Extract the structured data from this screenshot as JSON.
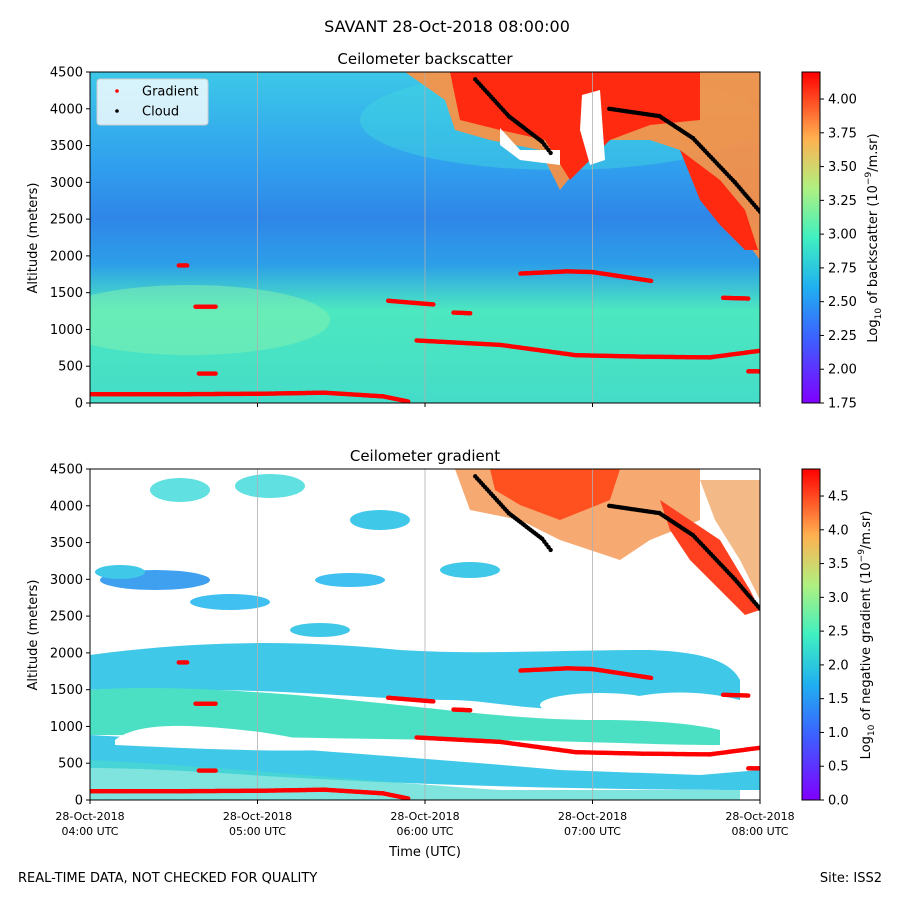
{
  "figure": {
    "suptitle": "SAVANT 28-Oct-2018 08:00:00",
    "footer_left": "REAL-TIME DATA, NOT CHECKED FOR QUALITY",
    "footer_right": "Site: ISS2"
  },
  "chart_data": [
    {
      "type": "heatmap",
      "title": "Ceilometer backscatter",
      "ylabel": "Altitude (meters)",
      "xlabel": "",
      "x_tick_labels": [],
      "y_ticks": [
        0,
        500,
        1000,
        1500,
        2000,
        2500,
        3000,
        3500,
        4000,
        4500
      ],
      "ylim": [
        0,
        4500
      ],
      "xlim_utc": [
        "04:00",
        "08:00"
      ],
      "grid": "vertical lines at x ticks",
      "colorbar": {
        "label_pre": "Log",
        "label_sub": "10",
        "label_mid": " of backscatter (10",
        "label_sup": "−9",
        "label_post": "/m.sr)",
        "range": [
          1.75,
          4.2
        ],
        "ticks": [
          "1.75",
          "2.00",
          "2.25",
          "2.50",
          "2.75",
          "3.00",
          "3.25",
          "3.50",
          "3.75",
          "4.00"
        ],
        "colormap": "rainbow"
      },
      "legend": {
        "placement": "upper-left",
        "entries": [
          {
            "label": "Gradient",
            "color": "#ff0000"
          },
          {
            "label": "Cloud",
            "color": "#000000"
          }
        ]
      }
    },
    {
      "type": "heatmap",
      "title": "Ceilometer gradient",
      "ylabel": "Altitude (meters)",
      "xlabel": "Time (UTC)",
      "x_tick_labels": [
        [
          "28-Oct-2018",
          "04:00 UTC"
        ],
        [
          "28-Oct-2018",
          "05:00 UTC"
        ],
        [
          "28-Oct-2018",
          "06:00 UTC"
        ],
        [
          "28-Oct-2018",
          "07:00 UTC"
        ],
        [
          "28-Oct-2018",
          "08:00 UTC"
        ]
      ],
      "y_ticks": [
        0,
        500,
        1000,
        1500,
        2000,
        2500,
        3000,
        3500,
        4000,
        4500
      ],
      "ylim": [
        0,
        4500
      ],
      "xlim_utc": [
        "04:00",
        "08:00"
      ],
      "grid": "vertical lines at x ticks",
      "colorbar": {
        "label_pre": "Log",
        "label_sub": "10",
        "label_mid": " of negative gradient (10",
        "label_sup": "−9",
        "label_post": "/m.sr)",
        "range": [
          0,
          4.9
        ],
        "ticks": [
          "0.0",
          "0.5",
          "1.0",
          "1.5",
          "2.0",
          "2.5",
          "3.0",
          "3.5",
          "4.0",
          "4.5"
        ],
        "colormap": "rainbow"
      }
    }
  ],
  "gradient_series": [
    {
      "t": [
        4.0,
        4.55
      ],
      "alt": [
        120,
        120
      ]
    },
    {
      "t": [
        4.55,
        5.0,
        5.4,
        5.75,
        5.9
      ],
      "alt": [
        120,
        125,
        140,
        90,
        20
      ]
    },
    {
      "t": [
        4.53,
        4.58
      ],
      "alt": [
        1870,
        1870
      ]
    },
    {
      "t": [
        4.63,
        4.75
      ],
      "alt": [
        1310,
        1310
      ]
    },
    {
      "t": [
        4.65,
        4.75
      ],
      "alt": [
        400,
        400
      ]
    },
    {
      "t": [
        5.78,
        6.05
      ],
      "alt": [
        1390,
        1340
      ]
    },
    {
      "t": [
        6.17,
        6.27
      ],
      "alt": [
        1230,
        1220
      ]
    },
    {
      "t": [
        5.95,
        6.45,
        6.9,
        7.3,
        7.7,
        8.0
      ],
      "alt": [
        850,
        790,
        650,
        630,
        620,
        710
      ]
    },
    {
      "t": [
        6.57,
        6.85,
        7.0,
        7.35
      ],
      "alt": [
        1760,
        1790,
        1780,
        1660
      ]
    },
    {
      "t": [
        7.78,
        7.93
      ],
      "alt": [
        1430,
        1420
      ]
    },
    {
      "t": [
        7.93,
        8.0
      ],
      "alt": [
        430,
        430
      ]
    }
  ],
  "cloud_series": [
    {
      "t": [
        6.3,
        6.5,
        6.7,
        6.75
      ],
      "alt": [
        4400,
        3900,
        3550,
        3400
      ]
    },
    {
      "t": [
        7.1,
        7.4,
        7.6,
        7.85,
        8.0
      ],
      "alt": [
        4000,
        3900,
        3600,
        3000,
        2600
      ]
    }
  ]
}
